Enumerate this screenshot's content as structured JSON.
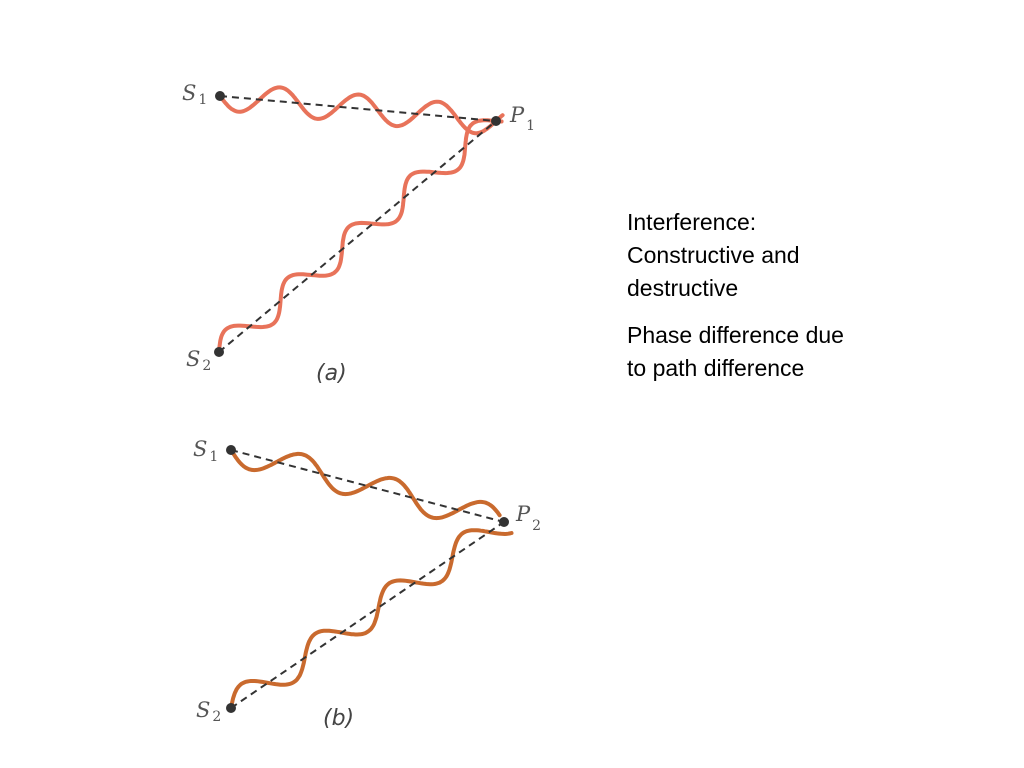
{
  "diagram_a": {
    "caption": "(a)",
    "source1": {
      "letter": "S",
      "sub": "1"
    },
    "source2": {
      "letter": "S",
      "sub": "2"
    },
    "point": {
      "letter": "P",
      "sub": "1"
    }
  },
  "diagram_b": {
    "caption": "(b)",
    "source1": {
      "letter": "S",
      "sub": "1"
    },
    "source2": {
      "letter": "S",
      "sub": "2"
    },
    "point": {
      "letter": "P",
      "sub": "2"
    }
  },
  "notes": {
    "heading": "Interference: Constructive and destructive",
    "detail": "Phase difference due to path difference"
  },
  "colors": {
    "wave_a": "#e8735a",
    "wave_b": "#c96a2e",
    "path_line": "#333333",
    "point": "#333333"
  }
}
